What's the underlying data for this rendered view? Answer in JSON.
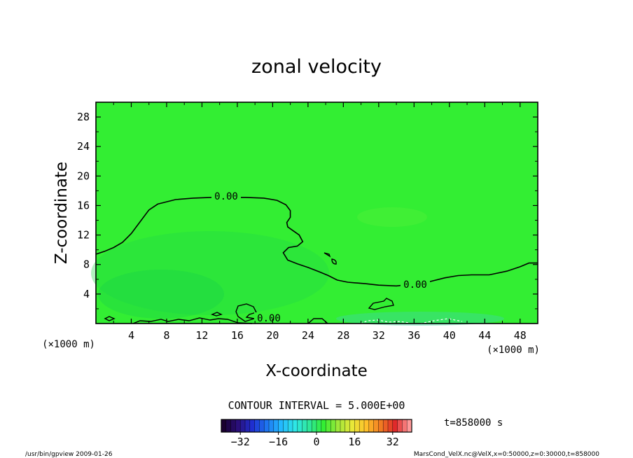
{
  "chart_data": {
    "type": "heatmap",
    "title": "zonal velocity",
    "xlabel": "X-coordinate",
    "ylabel": "Z-coordinate",
    "x_unit": "(×1000 m)",
    "y_unit": "(×1000 m)",
    "xlim": [
      0,
      50
    ],
    "ylim": [
      0,
      30
    ],
    "xticks": [
      4,
      8,
      12,
      16,
      20,
      24,
      28,
      32,
      36,
      40,
      44,
      48
    ],
    "yticks": [
      4,
      8,
      12,
      16,
      20,
      24,
      28
    ],
    "field_color": "#33ee33",
    "contour_interval_text": "CONTOUR INTERVAL = 5.000E+00",
    "contour_labels": [
      "0.00",
      "0.00",
      "0.00"
    ],
    "zero_contour": [
      [
        0,
        9.4
      ],
      [
        1,
        9.8
      ],
      [
        2,
        10.3
      ],
      [
        3,
        11
      ],
      [
        4,
        12.2
      ],
      [
        5,
        13.8
      ],
      [
        6,
        15.4
      ],
      [
        7,
        16.2
      ],
      [
        9,
        16.8
      ],
      [
        11,
        17
      ],
      [
        13,
        17.1
      ],
      [
        15,
        17.1
      ],
      [
        17,
        17.1
      ],
      [
        19,
        17
      ],
      [
        20.5,
        16.7
      ],
      [
        21.5,
        16.1
      ],
      [
        22,
        15.3
      ],
      [
        22,
        14.4
      ],
      [
        21.6,
        13.7
      ],
      [
        21.7,
        13.1
      ],
      [
        22.3,
        12.6
      ],
      [
        23,
        12
      ],
      [
        23.4,
        11.1
      ],
      [
        22.8,
        10.5
      ],
      [
        21.8,
        10.3
      ],
      [
        21.2,
        9.6
      ],
      [
        21.7,
        8.6
      ],
      [
        22.8,
        8.1
      ],
      [
        24,
        7.6
      ],
      [
        25.3,
        7
      ],
      [
        26.3,
        6.5
      ],
      [
        27.3,
        5.9
      ],
      [
        28.5,
        5.6
      ],
      [
        30.5,
        5.4
      ],
      [
        32,
        5.2
      ],
      [
        34,
        5.1
      ],
      [
        35.5,
        5.3
      ],
      [
        37.5,
        5.6
      ],
      [
        39.5,
        6.2
      ],
      [
        41,
        6.5
      ],
      [
        42.5,
        6.6
      ],
      [
        44.5,
        6.6
      ],
      [
        46.5,
        7.1
      ],
      [
        48,
        7.7
      ],
      [
        49,
        8.2
      ],
      [
        50,
        8.2
      ]
    ],
    "colorbar": {
      "min": -40,
      "max": 40,
      "ticks": [
        -32,
        -16,
        0,
        16,
        32
      ],
      "tick_labels": [
        "−32",
        "−16",
        "0",
        "16",
        "32"
      ],
      "colors": [
        "#1a0030",
        "#2a0f7a",
        "#1f2fd0",
        "#1e74f0",
        "#23b8ff",
        "#2ee6e6",
        "#2fe89a",
        "#33ee33",
        "#9fe83a",
        "#e8e838",
        "#ffbf2a",
        "#f07a22",
        "#e02a2a",
        "#ff9a9a"
      ]
    },
    "time_label": "t=858000 s"
  },
  "footer": {
    "left": "/usr/bin/gpview  2009-01-26",
    "right": "MarsCond_VelX.nc@VelX,x=0:50000,z=0:30000,t=858000"
  }
}
